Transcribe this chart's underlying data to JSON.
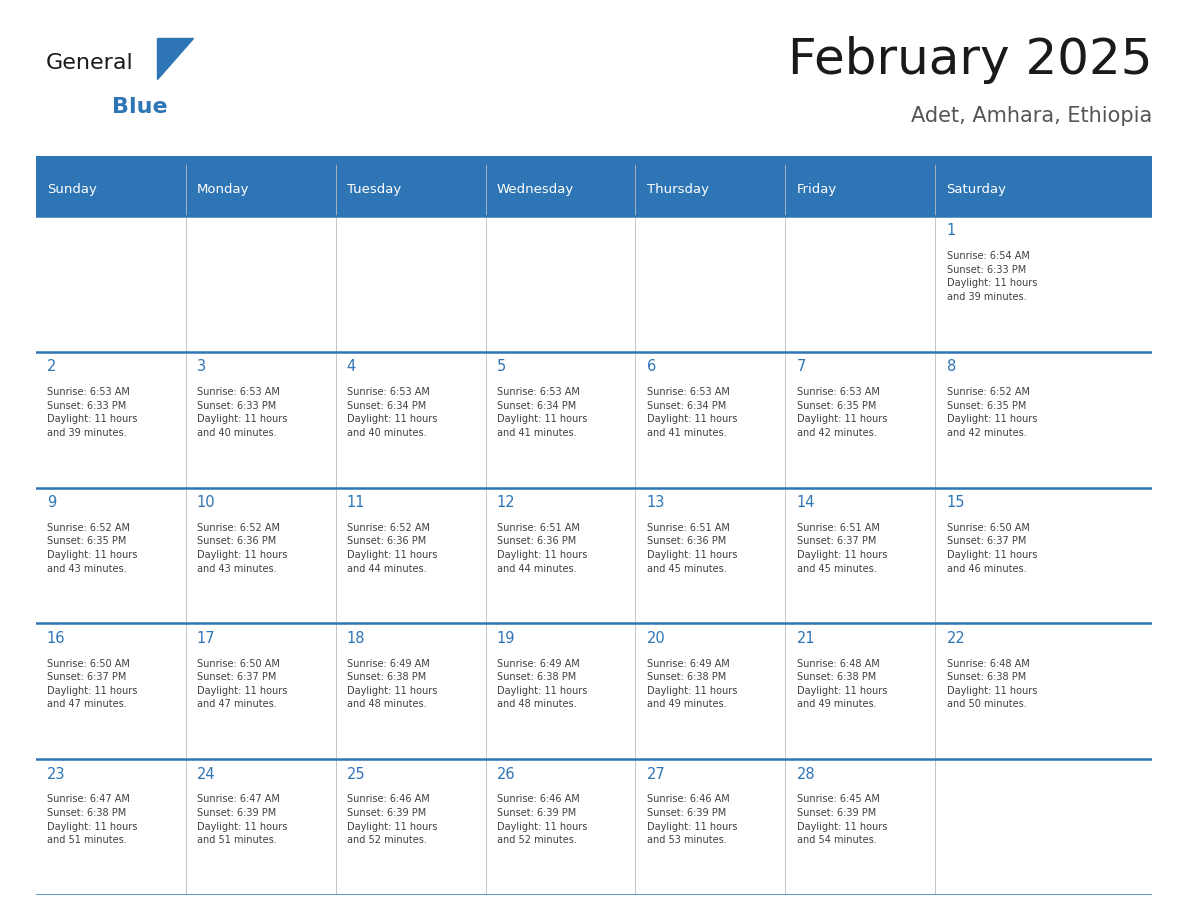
{
  "title": "February 2025",
  "subtitle": "Adet, Amhara, Ethiopia",
  "header_bg": "#2E75B6",
  "header_text_color": "#FFFFFF",
  "cell_bg_white": "#FFFFFF",
  "cell_bg_light": "#F5F5F5",
  "day_number_color": "#2E75B6",
  "text_color": "#404040",
  "border_color": "#2E75B6",
  "grid_color": "#BBBBBB",
  "days_of_week": [
    "Sunday",
    "Monday",
    "Tuesday",
    "Wednesday",
    "Thursday",
    "Friday",
    "Saturday"
  ],
  "weeks": [
    [
      {
        "day": null,
        "info": null
      },
      {
        "day": null,
        "info": null
      },
      {
        "day": null,
        "info": null
      },
      {
        "day": null,
        "info": null
      },
      {
        "day": null,
        "info": null
      },
      {
        "day": null,
        "info": null
      },
      {
        "day": 1,
        "info": "Sunrise: 6:54 AM\nSunset: 6:33 PM\nDaylight: 11 hours\nand 39 minutes."
      }
    ],
    [
      {
        "day": 2,
        "info": "Sunrise: 6:53 AM\nSunset: 6:33 PM\nDaylight: 11 hours\nand 39 minutes."
      },
      {
        "day": 3,
        "info": "Sunrise: 6:53 AM\nSunset: 6:33 PM\nDaylight: 11 hours\nand 40 minutes."
      },
      {
        "day": 4,
        "info": "Sunrise: 6:53 AM\nSunset: 6:34 PM\nDaylight: 11 hours\nand 40 minutes."
      },
      {
        "day": 5,
        "info": "Sunrise: 6:53 AM\nSunset: 6:34 PM\nDaylight: 11 hours\nand 41 minutes."
      },
      {
        "day": 6,
        "info": "Sunrise: 6:53 AM\nSunset: 6:34 PM\nDaylight: 11 hours\nand 41 minutes."
      },
      {
        "day": 7,
        "info": "Sunrise: 6:53 AM\nSunset: 6:35 PM\nDaylight: 11 hours\nand 42 minutes."
      },
      {
        "day": 8,
        "info": "Sunrise: 6:52 AM\nSunset: 6:35 PM\nDaylight: 11 hours\nand 42 minutes."
      }
    ],
    [
      {
        "day": 9,
        "info": "Sunrise: 6:52 AM\nSunset: 6:35 PM\nDaylight: 11 hours\nand 43 minutes."
      },
      {
        "day": 10,
        "info": "Sunrise: 6:52 AM\nSunset: 6:36 PM\nDaylight: 11 hours\nand 43 minutes."
      },
      {
        "day": 11,
        "info": "Sunrise: 6:52 AM\nSunset: 6:36 PM\nDaylight: 11 hours\nand 44 minutes."
      },
      {
        "day": 12,
        "info": "Sunrise: 6:51 AM\nSunset: 6:36 PM\nDaylight: 11 hours\nand 44 minutes."
      },
      {
        "day": 13,
        "info": "Sunrise: 6:51 AM\nSunset: 6:36 PM\nDaylight: 11 hours\nand 45 minutes."
      },
      {
        "day": 14,
        "info": "Sunrise: 6:51 AM\nSunset: 6:37 PM\nDaylight: 11 hours\nand 45 minutes."
      },
      {
        "day": 15,
        "info": "Sunrise: 6:50 AM\nSunset: 6:37 PM\nDaylight: 11 hours\nand 46 minutes."
      }
    ],
    [
      {
        "day": 16,
        "info": "Sunrise: 6:50 AM\nSunset: 6:37 PM\nDaylight: 11 hours\nand 47 minutes."
      },
      {
        "day": 17,
        "info": "Sunrise: 6:50 AM\nSunset: 6:37 PM\nDaylight: 11 hours\nand 47 minutes."
      },
      {
        "day": 18,
        "info": "Sunrise: 6:49 AM\nSunset: 6:38 PM\nDaylight: 11 hours\nand 48 minutes."
      },
      {
        "day": 19,
        "info": "Sunrise: 6:49 AM\nSunset: 6:38 PM\nDaylight: 11 hours\nand 48 minutes."
      },
      {
        "day": 20,
        "info": "Sunrise: 6:49 AM\nSunset: 6:38 PM\nDaylight: 11 hours\nand 49 minutes."
      },
      {
        "day": 21,
        "info": "Sunrise: 6:48 AM\nSunset: 6:38 PM\nDaylight: 11 hours\nand 49 minutes."
      },
      {
        "day": 22,
        "info": "Sunrise: 6:48 AM\nSunset: 6:38 PM\nDaylight: 11 hours\nand 50 minutes."
      }
    ],
    [
      {
        "day": 23,
        "info": "Sunrise: 6:47 AM\nSunset: 6:38 PM\nDaylight: 11 hours\nand 51 minutes."
      },
      {
        "day": 24,
        "info": "Sunrise: 6:47 AM\nSunset: 6:39 PM\nDaylight: 11 hours\nand 51 minutes."
      },
      {
        "day": 25,
        "info": "Sunrise: 6:46 AM\nSunset: 6:39 PM\nDaylight: 11 hours\nand 52 minutes."
      },
      {
        "day": 26,
        "info": "Sunrise: 6:46 AM\nSunset: 6:39 PM\nDaylight: 11 hours\nand 52 minutes."
      },
      {
        "day": 27,
        "info": "Sunrise: 6:46 AM\nSunset: 6:39 PM\nDaylight: 11 hours\nand 53 minutes."
      },
      {
        "day": 28,
        "info": "Sunrise: 6:45 AM\nSunset: 6:39 PM\nDaylight: 11 hours\nand 54 minutes."
      },
      {
        "day": null,
        "info": null
      }
    ]
  ],
  "fig_width": 11.88,
  "fig_height": 9.18,
  "logo_general_color": "#1a1a1a",
  "logo_blue_color": "#2E75B6",
  "logo_triangle_color": "#2E75B6"
}
